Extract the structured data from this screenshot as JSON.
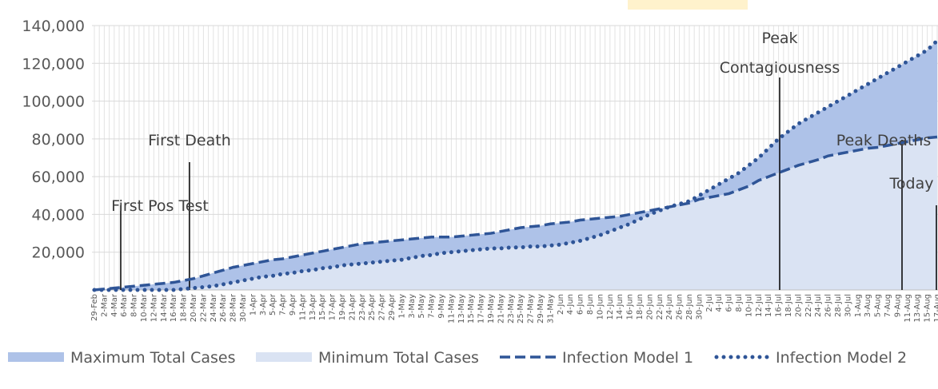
{
  "chart_data": {
    "type": "area_line",
    "categories": [
      "29-Feb",
      "2-Mar",
      "4-Mar",
      "6-Mar",
      "8-Mar",
      "10-Mar",
      "12-Mar",
      "14-Mar",
      "16-Mar",
      "18-Mar",
      "20-Mar",
      "22-Mar",
      "24-Mar",
      "26-Mar",
      "28-Mar",
      "30-Mar",
      "1-Apr",
      "3-Apr",
      "5-Apr",
      "7-Apr",
      "9-Apr",
      "11-Apr",
      "13-Apr",
      "15-Apr",
      "17-Apr",
      "19-Apr",
      "21-Apr",
      "23-Apr",
      "25-Apr",
      "27-Apr",
      "29-Apr",
      "1-May",
      "3-May",
      "5-May",
      "7-May",
      "9-May",
      "11-May",
      "13-May",
      "15-May",
      "17-May",
      "19-May",
      "21-May",
      "23-May",
      "25-May",
      "27-May",
      "29-May",
      "31-May",
      "2-Jun",
      "4-Jun",
      "6-Jun",
      "8-Jun",
      "10-Jun",
      "12-Jun",
      "14-Jun",
      "16-Jun",
      "18-Jun",
      "20-Jun",
      "22-Jun",
      "24-Jun",
      "26-Jun",
      "28-Jun",
      "30-Jun",
      "2-Jul",
      "4-Jul",
      "6-Jul",
      "8-Jul",
      "10-Jul",
      "12-Jul",
      "14-Jul",
      "16-Jul",
      "18-Jul",
      "20-Jul",
      "22-Jul",
      "24-Jul",
      "26-Jul",
      "28-Jul",
      "30-Jul",
      "1-Aug",
      "3-Aug",
      "5-Aug",
      "7-Aug",
      "9-Aug",
      "11-Aug",
      "13-Aug",
      "15-Aug",
      "17-Aug"
    ],
    "series": [
      {
        "name": "Maximum Total Cases",
        "kind": "area",
        "color": "#aec2e8",
        "values": [
          0,
          500,
          1000,
          1500,
          2000,
          2500,
          3000,
          3500,
          4000,
          5000,
          6000,
          7500,
          9000,
          10500,
          12000,
          13000,
          14000,
          15000,
          16000,
          16500,
          17500,
          18500,
          19500,
          20500,
          21500,
          22500,
          23500,
          24500,
          25000,
          25500,
          26000,
          26500,
          27000,
          27500,
          28000,
          28000,
          28000,
          28500,
          29000,
          29500,
          30000,
          31000,
          32000,
          33000,
          33500,
          34000,
          35000,
          35500,
          36000,
          37000,
          37500,
          38000,
          38500,
          39000,
          40000,
          41000,
          42000,
          43000,
          44000,
          45500,
          47000,
          50000,
          53000,
          56000,
          59000,
          62000,
          66000,
          70000,
          75000,
          80000,
          84000,
          88000,
          91000,
          94000,
          97000,
          100000,
          103000,
          106000,
          109000,
          112000,
          115000,
          118000,
          121000,
          124000,
          127000,
          132000
        ]
      },
      {
        "name": "Minimum Total Cases",
        "kind": "area",
        "color": "#dae3f3",
        "values": [
          0,
          0,
          0,
          0,
          0,
          0,
          0,
          0,
          0,
          500,
          1000,
          1500,
          2000,
          3000,
          4000,
          5000,
          6000,
          7000,
          7500,
          8500,
          9000,
          10000,
          10500,
          11500,
          12000,
          13000,
          13500,
          14000,
          14500,
          15000,
          15500,
          16000,
          17000,
          18000,
          18500,
          19500,
          20000,
          20500,
          21000,
          21500,
          22000,
          22000,
          22500,
          22500,
          23000,
          23000,
          23500,
          24000,
          25000,
          26000,
          27500,
          29000,
          31000,
          33000,
          35000,
          37500,
          40000,
          42000,
          44000,
          45000,
          46000,
          48000,
          49000,
          50000,
          51000,
          53000,
          55000,
          58000,
          60000,
          62000,
          64000,
          66000,
          67500,
          69000,
          71000,
          72000,
          73000,
          74000,
          75000,
          75500,
          76500,
          77500,
          78500,
          79500,
          80500,
          81000
        ]
      },
      {
        "name": "Infection Model 1",
        "kind": "dashed",
        "color": "#2f5597",
        "values": [
          0,
          500,
          1000,
          1500,
          2000,
          2500,
          3000,
          3500,
          4000,
          5000,
          6000,
          7500,
          9000,
          10500,
          12000,
          13000,
          14000,
          15000,
          16000,
          16500,
          17500,
          18500,
          19500,
          20500,
          21500,
          22500,
          23500,
          24500,
          25000,
          25500,
          26000,
          26500,
          27000,
          27500,
          28000,
          28000,
          28000,
          28500,
          29000,
          29500,
          30000,
          31000,
          32000,
          33000,
          33500,
          34000,
          35000,
          35500,
          36000,
          37000,
          37500,
          38000,
          38500,
          39000,
          40000,
          41000,
          42000,
          43000,
          44000,
          45000,
          46000,
          48000,
          49000,
          50000,
          51000,
          53000,
          55000,
          58000,
          60000,
          62000,
          64000,
          66000,
          67500,
          69000,
          71000,
          72000,
          73000,
          74000,
          75000,
          75500,
          76500,
          77500,
          78500,
          79500,
          80500,
          81000
        ]
      },
      {
        "name": "Infection Model 2",
        "kind": "dotted",
        "color": "#2f5597",
        "values": [
          0,
          0,
          0,
          0,
          0,
          0,
          0,
          0,
          0,
          500,
          1000,
          1500,
          2000,
          3000,
          4000,
          5000,
          6000,
          7000,
          7500,
          8500,
          9000,
          10000,
          10500,
          11500,
          12000,
          13000,
          13500,
          14000,
          14500,
          15000,
          15500,
          16000,
          17000,
          18000,
          18500,
          19500,
          20000,
          20500,
          21000,
          21500,
          22000,
          22000,
          22500,
          22500,
          23000,
          23000,
          23500,
          24000,
          25000,
          26000,
          27500,
          29000,
          31000,
          33000,
          35000,
          37500,
          40000,
          42000,
          44000,
          45500,
          47000,
          50000,
          53000,
          56000,
          59000,
          62000,
          66000,
          70000,
          75000,
          80000,
          84000,
          88000,
          91000,
          94000,
          97000,
          100000,
          103000,
          106000,
          109000,
          112000,
          115000,
          118000,
          121000,
          124000,
          127000,
          132000
        ]
      }
    ],
    "ylim": [
      0,
      140000
    ],
    "yticks": [
      {
        "value": 20000,
        "label": "20,000"
      },
      {
        "value": 40000,
        "label": "40,000"
      },
      {
        "value": 60000,
        "label": "60,000"
      },
      {
        "value": 80000,
        "label": "80,000"
      },
      {
        "value": 100000,
        "label": "100,000"
      },
      {
        "value": 120000,
        "label": "120,000"
      },
      {
        "value": 140000,
        "label": "140,000"
      }
    ],
    "grid": true,
    "annotations": [
      {
        "text": "First Pos Test"
      },
      {
        "text": "First Death"
      },
      {
        "text": "Peak Contagiousness"
      },
      {
        "text": "Peak Deaths"
      },
      {
        "text": "Today"
      }
    ]
  }
}
